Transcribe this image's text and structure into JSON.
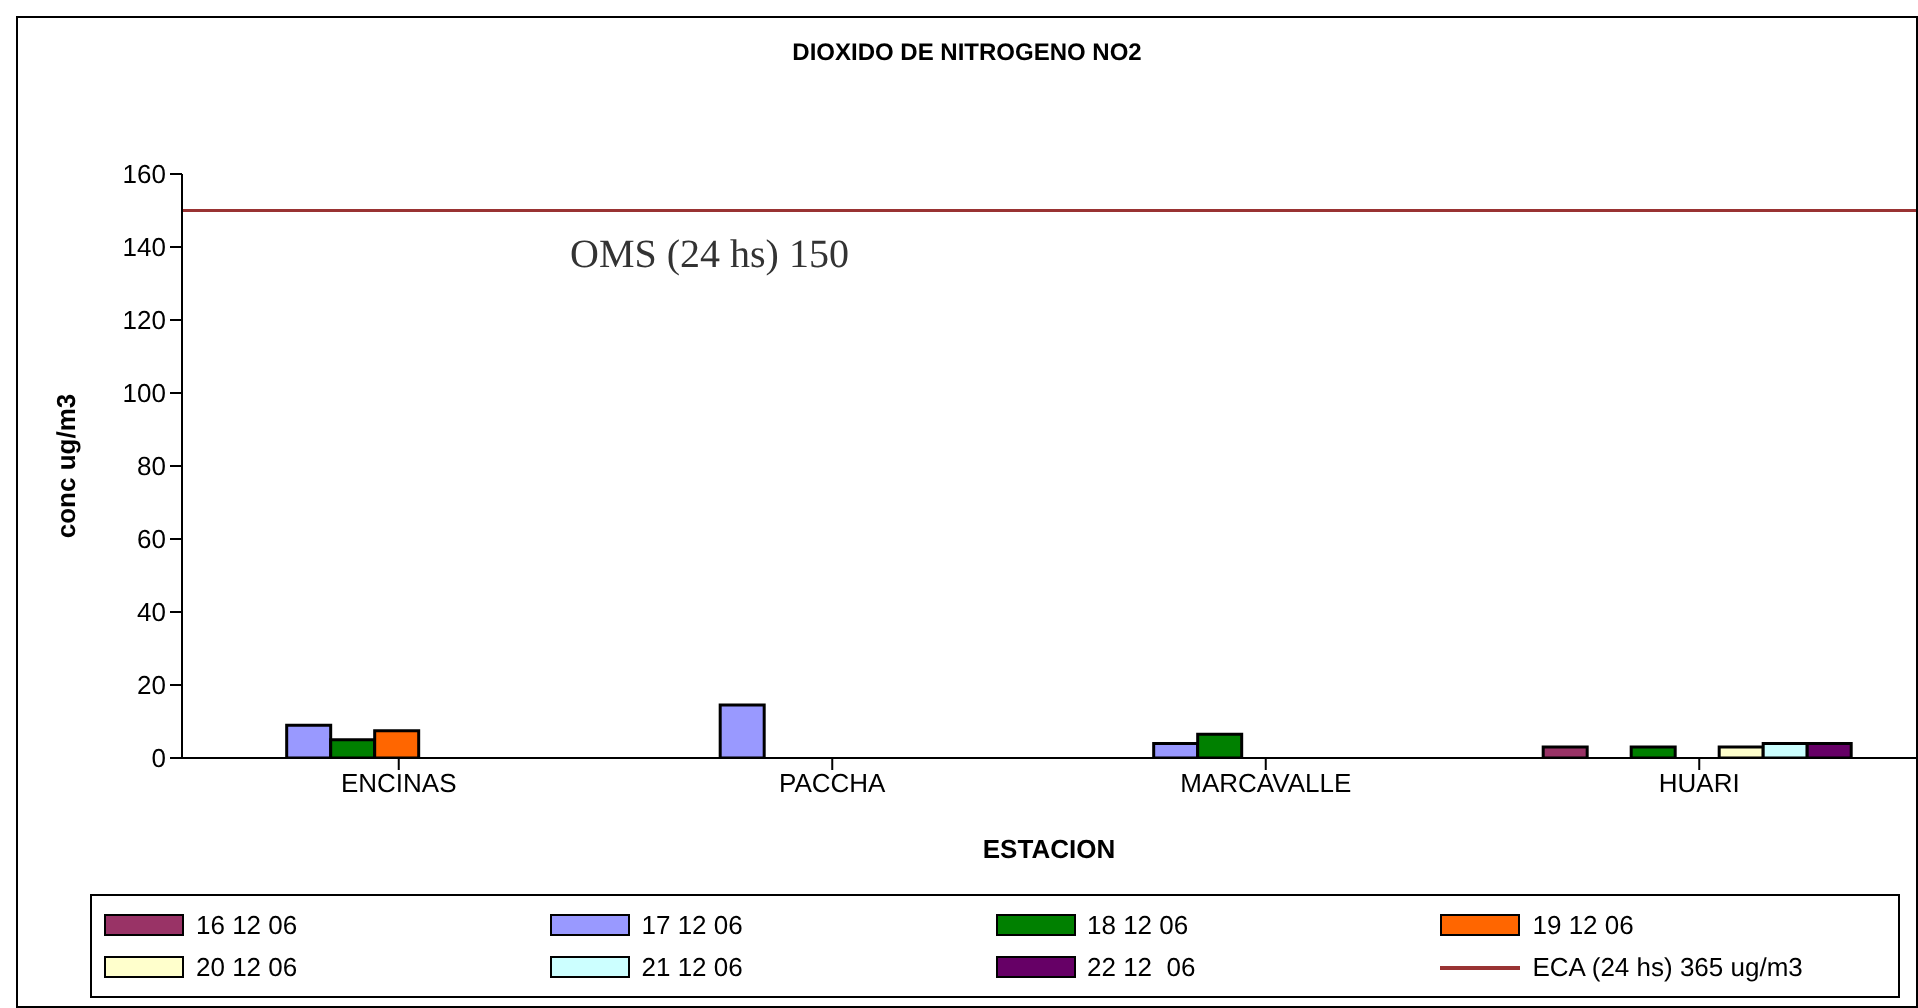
{
  "chart_data": {
    "type": "bar",
    "title": "DIOXIDO DE NITROGENO NO2",
    "xlabel": "ESTACION",
    "ylabel": "conc ug/m3",
    "categories": [
      "ENCINAS",
      "PACCHA",
      "MARCAVALLE",
      "HUARI"
    ],
    "series": [
      {
        "name": "16 12 06",
        "color": "#993366",
        "values": [
          null,
          null,
          null,
          3
        ]
      },
      {
        "name": "17 12 06",
        "color": "#9999ff",
        "values": [
          9,
          14.5,
          4,
          null
        ]
      },
      {
        "name": "18 12 06",
        "color": "#008000",
        "values": [
          5,
          null,
          6.5,
          3
        ]
      },
      {
        "name": "19 12 06",
        "color": "#ff6600",
        "values": [
          7.5,
          null,
          null,
          null
        ]
      },
      {
        "name": "20 12 06",
        "color": "#ffffcc",
        "values": [
          null,
          null,
          null,
          3
        ]
      },
      {
        "name": "21 12 06",
        "color": "#ccffff",
        "values": [
          null,
          null,
          null,
          4
        ]
      },
      {
        "name": "22 12  06",
        "color": "#660066",
        "values": [
          null,
          null,
          null,
          4
        ]
      },
      {
        "name": "ECA (24 hs) 365 ug/m3",
        "type": "line",
        "color": "#993333",
        "values": [
          null,
          null,
          null,
          null
        ]
      }
    ],
    "ylim": [
      0,
      160
    ],
    "yticks": [
      0,
      20,
      40,
      60,
      80,
      100,
      120,
      140,
      160
    ],
    "grid": false,
    "legend": "bottom",
    "ref_lines": [
      {
        "axis": "y",
        "value": 150,
        "label": "OMS (24 hs) 150",
        "color": "#993333"
      }
    ]
  }
}
